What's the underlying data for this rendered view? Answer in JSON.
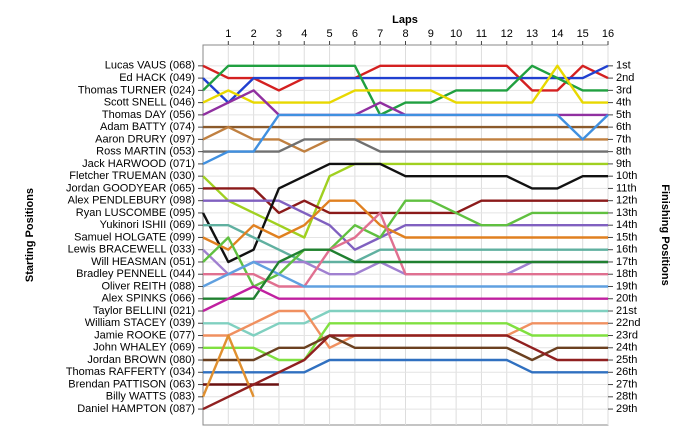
{
  "chart_data": {
    "type": "line",
    "x_label": "Laps",
    "y_label": "Starting Positions",
    "y2_label": "Finishing Positions",
    "x": [
      0,
      1,
      2,
      3,
      4,
      5,
      6,
      7,
      8,
      9,
      10,
      11,
      12,
      13,
      14,
      15,
      16
    ],
    "xlim": [
      0,
      16
    ],
    "xticks": [
      1,
      2,
      3,
      4,
      5,
      6,
      7,
      8,
      9,
      10,
      11,
      12,
      13,
      14,
      15,
      16
    ],
    "ylim": [
      30.3,
      -0.7
    ],
    "yticks": [
      {
        "value": 1,
        "label": "1st"
      },
      {
        "value": 2,
        "label": "2nd"
      },
      {
        "value": 3,
        "label": "3rd"
      },
      {
        "value": 4,
        "label": "4th"
      },
      {
        "value": 5,
        "label": "5th"
      },
      {
        "value": 6,
        "label": "6th"
      },
      {
        "value": 7,
        "label": "7th"
      },
      {
        "value": 8,
        "label": "8th"
      },
      {
        "value": 9,
        "label": "9th"
      },
      {
        "value": 10,
        "label": "10th"
      },
      {
        "value": 11,
        "label": "11th"
      },
      {
        "value": 12,
        "label": "12th"
      },
      {
        "value": 13,
        "label": "13th"
      },
      {
        "value": 14,
        "label": "14th"
      },
      {
        "value": 15,
        "label": "15th"
      },
      {
        "value": 16,
        "label": "16th"
      },
      {
        "value": 17,
        "label": "17th"
      },
      {
        "value": 18,
        "label": "18th"
      },
      {
        "value": 19,
        "label": "19th"
      },
      {
        "value": 20,
        "label": "20th"
      },
      {
        "value": 21,
        "label": "21st"
      },
      {
        "value": 22,
        "label": "22nd"
      },
      {
        "value": 23,
        "label": "23rd"
      },
      {
        "value": 24,
        "label": "24th"
      },
      {
        "value": 25,
        "label": "25th"
      },
      {
        "value": 26,
        "label": "26th"
      },
      {
        "value": 27,
        "label": "27th"
      },
      {
        "value": 28,
        "label": "28th"
      },
      {
        "value": 29,
        "label": "29th"
      }
    ],
    "y_inverted": true,
    "grid": true,
    "series": [
      {
        "name": "Lucas VAUS (068)",
        "color": "#d42020",
        "values": [
          1,
          2,
          2,
          3,
          2,
          2,
          2,
          1,
          1,
          1,
          1,
          1,
          1,
          3,
          3,
          1,
          2
        ]
      },
      {
        "name": "Ed HACK (049)",
        "color": "#2040d0",
        "values": [
          2,
          4,
          2,
          2,
          2,
          2,
          2,
          2,
          2,
          2,
          2,
          2,
          2,
          2,
          2,
          2,
          1
        ]
      },
      {
        "name": "Thomas TURNER (024)",
        "color": "#20a040",
        "values": [
          3,
          1,
          1,
          1,
          1,
          1,
          1,
          5,
          4,
          4,
          3,
          3,
          3,
          1,
          2,
          3,
          3
        ]
      },
      {
        "name": "Scott SNELL (046)",
        "color": "#e8d800",
        "values": [
          4,
          3,
          4,
          4,
          4,
          4,
          3,
          3,
          3,
          3,
          4,
          4,
          4,
          4,
          1,
          4,
          4
        ]
      },
      {
        "name": "Thomas DAY (056)",
        "color": "#9030a0",
        "values": [
          5,
          4,
          3,
          5,
          5,
          5,
          5,
          4,
          5,
          5,
          5,
          5,
          5,
          5,
          5,
          5,
          5
        ]
      },
      {
        "name": "Adam BATTY (074)",
        "color": "#8b5a2b",
        "values": [
          6,
          6,
          6,
          6,
          6,
          6,
          6,
          6,
          6,
          6,
          6,
          6,
          6,
          6,
          6,
          6,
          6
        ]
      },
      {
        "name": "Aaron DRURY (097)",
        "color": "#c08040",
        "values": [
          7,
          6,
          7,
          7,
          8,
          7,
          7,
          7,
          7,
          7,
          7,
          7,
          7,
          7,
          7,
          7,
          7
        ]
      },
      {
        "name": "Ross MARTIN (053)",
        "color": "#707070",
        "values": [
          8,
          8,
          8,
          8,
          7,
          7,
          7,
          8,
          8,
          8,
          8,
          8,
          8,
          8,
          8,
          8,
          8
        ]
      },
      {
        "name": "Jack HARWOOD (071)",
        "color": "#4090e0",
        "values": [
          9,
          8,
          8,
          5,
          5,
          5,
          5,
          5,
          5,
          5,
          5,
          5,
          5,
          5,
          5,
          7,
          5
        ]
      },
      {
        "name": "Fletcher TRUEMAN (030)",
        "color": "#a0d020",
        "values": [
          10,
          12,
          13,
          14,
          15,
          10,
          9,
          9,
          9,
          9,
          9,
          9,
          9,
          9,
          9,
          9,
          9
        ]
      },
      {
        "name": "Jordan GOODYEAR (065)",
        "color": "#8b1a1a",
        "values": [
          11,
          11,
          11,
          13,
          12,
          13,
          13,
          13,
          13,
          13,
          13,
          12,
          12,
          12,
          12,
          12,
          12
        ]
      },
      {
        "name": "Alex PENDLEBURY (098)",
        "color": "#8060c0",
        "values": [
          12,
          12,
          12,
          12,
          13,
          14,
          16,
          15,
          14,
          14,
          14,
          14,
          14,
          14,
          14,
          14,
          14
        ]
      },
      {
        "name": "Ryan LUSCOMBE (095)",
        "color": "#111111",
        "values": [
          13,
          17,
          16,
          11,
          10,
          9,
          9,
          9,
          10,
          10,
          10,
          10,
          10,
          11,
          11,
          10,
          10
        ]
      },
      {
        "name": "Yukinori ISHII (069)",
        "color": "#60b0a0",
        "values": [
          14,
          14,
          15,
          16,
          17,
          17,
          17,
          16,
          16,
          16,
          16,
          16,
          16,
          16,
          16,
          16,
          16
        ]
      },
      {
        "name": "Samuel HOLGATE (099)",
        "color": "#e08020",
        "values": [
          15,
          16,
          14,
          15,
          14,
          12,
          12,
          14,
          15,
          15,
          15,
          15,
          15,
          15,
          15,
          15,
          15
        ]
      },
      {
        "name": "Lewis BRACEWELL (033)",
        "color": "#a080d0",
        "values": [
          16,
          18,
          17,
          17,
          17,
          18,
          18,
          17,
          18,
          18,
          18,
          18,
          18,
          17,
          17,
          17,
          17
        ]
      },
      {
        "name": "Will HEASMAN (051)",
        "color": "#60c040",
        "values": [
          17,
          15,
          19,
          18,
          16,
          16,
          14,
          15,
          12,
          12,
          13,
          14,
          14,
          13,
          13,
          13,
          13
        ]
      },
      {
        "name": "Bradley PENNELL (044)",
        "color": "#e07090",
        "values": [
          18,
          18,
          18,
          19,
          19,
          16,
          15,
          13,
          18,
          18,
          18,
          18,
          18,
          18,
          18,
          18,
          18
        ]
      },
      {
        "name": "Oliver REITH (088)",
        "color": "#60a0e0",
        "values": [
          19,
          18,
          17,
          18,
          19,
          19,
          19,
          19,
          19,
          19,
          19,
          19,
          19,
          19,
          19,
          19,
          19
        ]
      },
      {
        "name": "Alex SPINKS (066)",
        "color": "#208030",
        "values": [
          20,
          20,
          20,
          17,
          16,
          16,
          17,
          17,
          17,
          17,
          17,
          17,
          17,
          17,
          17,
          17,
          17
        ]
      },
      {
        "name": "Taylor BELLINI (021)",
        "color": "#c020a0",
        "values": [
          21,
          20,
          19,
          20,
          20,
          20,
          20,
          20,
          20,
          20,
          20,
          20,
          20,
          20,
          20,
          20,
          20
        ]
      },
      {
        "name": "William STACEY (039)",
        "color": "#80d0c0",
        "values": [
          22,
          22,
          23,
          22,
          22,
          21,
          21,
          21,
          21,
          21,
          21,
          21,
          21,
          21,
          21,
          21,
          21
        ]
      },
      {
        "name": "Jamie ROOKE (077)",
        "color": "#f09060",
        "values": [
          23,
          23,
          22,
          21,
          21,
          24,
          23,
          23,
          23,
          23,
          23,
          23,
          23,
          22,
          22,
          22,
          22
        ]
      },
      {
        "name": "John WHALEY (069)",
        "color": "#80e040",
        "values": [
          24,
          24,
          24,
          25,
          25,
          22,
          22,
          22,
          22,
          22,
          22,
          22,
          22,
          23,
          23,
          23,
          23
        ]
      },
      {
        "name": "Jordan BROWN (080)",
        "color": "#6b4020",
        "values": [
          25,
          25,
          25,
          24,
          24,
          23,
          24,
          24,
          24,
          24,
          24,
          24,
          24,
          25,
          24,
          24,
          24
        ]
      },
      {
        "name": "Thomas RAFFERTY (034)",
        "color": "#3070c0",
        "values": [
          26,
          26,
          26,
          26,
          26,
          25,
          25,
          25,
          25,
          25,
          25,
          25,
          25,
          26,
          26,
          26,
          26
        ]
      },
      {
        "name": "Brendan PATTISON (063)",
        "color": "#6a1010",
        "values": [
          27,
          27,
          27,
          27,
          null,
          null,
          null,
          null,
          null,
          null,
          null,
          null,
          null,
          null,
          null,
          null,
          null
        ]
      },
      {
        "name": "Billy WATTS (083)",
        "color": "#e09030",
        "values": [
          28,
          23,
          28,
          null,
          null,
          null,
          null,
          null,
          null,
          null,
          null,
          null,
          null,
          null,
          null,
          null,
          null
        ]
      },
      {
        "name": "Daniel HAMPTON (087)",
        "color": "#902020",
        "values": [
          29,
          28,
          27,
          26,
          25,
          23,
          23,
          23,
          23,
          23,
          23,
          23,
          23,
          24,
          25,
          25,
          25
        ]
      }
    ]
  }
}
